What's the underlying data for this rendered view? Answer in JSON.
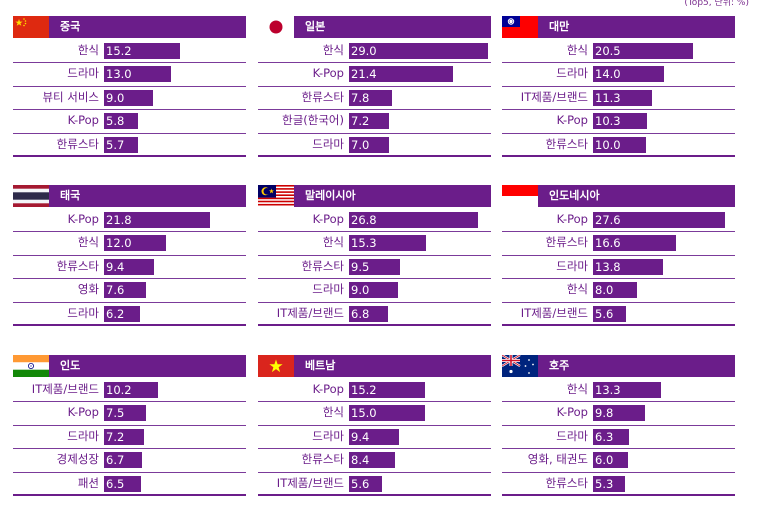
{
  "unit_note": "(Top5, 단위: %)",
  "colors": {
    "accent": "#6b1d8a",
    "text": "#6b1d8a",
    "header_text": "#ffffff"
  },
  "chart_data": [
    {
      "type": "bar",
      "title": "중국",
      "flag": "china-flag-icon",
      "categories": [
        "한식",
        "드라마",
        "뷰티 서비스",
        "K-Pop",
        "한류스타"
      ],
      "values": [
        15.2,
        13.0,
        9.0,
        5.8,
        5.7
      ],
      "value_labels": [
        "15.2",
        "13.0",
        "9.0",
        "5.8",
        "5.7"
      ]
    },
    {
      "type": "bar",
      "title": "일본",
      "flag": "japan-flag-icon",
      "categories": [
        "한식",
        "K-Pop",
        "한류스타",
        "한글(한국어)",
        "드라마"
      ],
      "values": [
        29.0,
        21.4,
        7.8,
        7.2,
        7.0
      ],
      "value_labels": [
        "29.0",
        "21.4",
        "7.8",
        "7.2",
        "7.0"
      ]
    },
    {
      "type": "bar",
      "title": "대만",
      "flag": "taiwan-flag-icon",
      "categories": [
        "한식",
        "드라마",
        "IT제품/브랜드",
        "K-Pop",
        "한류스타"
      ],
      "values": [
        20.5,
        14.0,
        11.3,
        10.3,
        10.0
      ],
      "value_labels": [
        "20.5",
        "14.0",
        "11.3",
        "10.3",
        "10.0"
      ]
    },
    {
      "type": "bar",
      "title": "태국",
      "flag": "thailand-flag-icon",
      "categories": [
        "K-Pop",
        "한식",
        "한류스타",
        "영화",
        "드라마"
      ],
      "values": [
        21.8,
        12.0,
        9.4,
        7.6,
        6.2
      ],
      "value_labels": [
        "21.8",
        "12.0",
        "9.4",
        "7.6",
        "6.2"
      ]
    },
    {
      "type": "bar",
      "title": "말레이시아",
      "flag": "malaysia-flag-icon",
      "categories": [
        "K-Pop",
        "한식",
        "한류스타",
        "드라마",
        "IT제품/브랜드"
      ],
      "values": [
        26.8,
        15.3,
        9.5,
        9.0,
        6.8
      ],
      "value_labels": [
        "26.8",
        "15.3",
        "9.5",
        "9.0",
        "6.8"
      ]
    },
    {
      "type": "bar",
      "title": "인도네시아",
      "flag": "indonesia-flag-icon",
      "categories": [
        "K-Pop",
        "한류스타",
        "드라마",
        "한식",
        "IT제품/브랜드"
      ],
      "values": [
        27.6,
        16.6,
        13.8,
        8.0,
        5.6
      ],
      "value_labels": [
        "27.6",
        "16.6",
        "13.8",
        "8.0",
        "5.6"
      ]
    },
    {
      "type": "bar",
      "title": "인도",
      "flag": "india-flag-icon",
      "categories": [
        "IT제품/브랜드",
        "K-Pop",
        "드라마",
        "경제성장",
        "패션"
      ],
      "values": [
        10.2,
        7.5,
        7.2,
        6.7,
        6.5
      ],
      "value_labels": [
        "10.2",
        "7.5",
        "7.2",
        "6.7",
        "6.5"
      ]
    },
    {
      "type": "bar",
      "title": "베트남",
      "flag": "vietnam-flag-icon",
      "categories": [
        "K-Pop",
        "한식",
        "드라마",
        "한류스타",
        "IT제품/브랜드"
      ],
      "values": [
        15.2,
        15.0,
        9.4,
        8.4,
        5.6
      ],
      "value_labels": [
        "15.2",
        "15.0",
        "9.4",
        "8.4",
        "5.6"
      ]
    },
    {
      "type": "bar",
      "title": "호주",
      "flag": "australia-flag-icon",
      "categories": [
        "한식",
        "K-Pop",
        "드라마",
        "영화, 태권도",
        "한류스타"
      ],
      "values": [
        13.3,
        9.8,
        6.3,
        6.0,
        5.3
      ],
      "value_labels": [
        "13.3",
        "9.8",
        "6.3",
        "6.0",
        "5.3"
      ]
    }
  ]
}
